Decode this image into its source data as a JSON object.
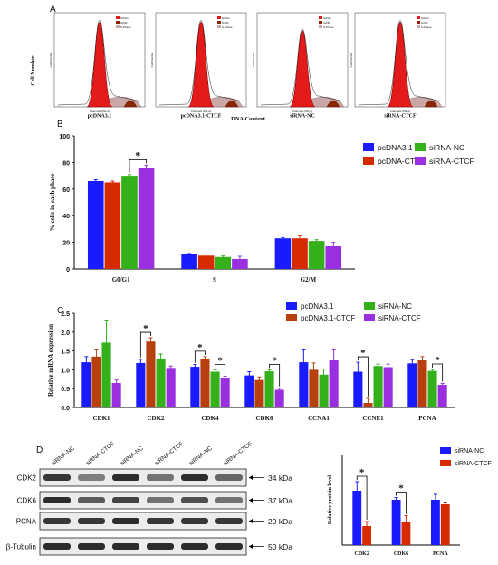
{
  "panel_labels": {
    "a": "A",
    "b": "B",
    "c": "C",
    "d": "D"
  },
  "panel_a": {
    "xlabel": "DNA Content",
    "ylabel": "Cell Number",
    "axis_caption": "Channels (PE-A)",
    "legend_items": [
      "G0/G1",
      "G2/M",
      "S-Phase"
    ],
    "samples": [
      "pcDNA3.1",
      "pcDNA3.1-CTCF",
      "siRNA-NC",
      "siRNA-CTCF"
    ]
  },
  "chart_data": [
    {
      "id": "b",
      "type": "bar",
      "categories": [
        "G0/G1",
        "S",
        "G2/M"
      ],
      "ylabel": "% cells in each phase",
      "ylim": [
        0,
        100
      ],
      "yticks": [
        0,
        20,
        40,
        60,
        80,
        100
      ],
      "legend_placement": "top-right",
      "series": [
        {
          "name": "pcDNA3.1",
          "color": "#1a1aff",
          "values": [
            66,
            11,
            23
          ],
          "errors": [
            1,
            0.6,
            0.6
          ]
        },
        {
          "name": "pcDNA-CTCF",
          "color": "#d62a00",
          "values": [
            65,
            10,
            23
          ],
          "errors": [
            1,
            1.2,
            2
          ]
        },
        {
          "name": "siRNA-NC",
          "color": "#33b01a",
          "values": [
            70,
            9,
            21
          ],
          "errors": [
            0.8,
            0.8,
            1
          ]
        },
        {
          "name": "siRNA-CTCF",
          "color": "#9a2fe0",
          "values": [
            76,
            7.5,
            17
          ],
          "errors": [
            2,
            2,
            3
          ]
        }
      ],
      "significance": [
        {
          "category": "G0/G1",
          "between": [
            "siRNA-NC",
            "siRNA-CTCF"
          ],
          "label": "*"
        }
      ]
    },
    {
      "id": "c",
      "type": "bar",
      "categories": [
        "CDK1",
        "CDK2",
        "CDK4",
        "CDK6",
        "CCNA1",
        "CCNE1",
        "PCNA"
      ],
      "ylabel": "Relative mRNA expression",
      "ylim": [
        0,
        2.5
      ],
      "yticks": [
        0.0,
        0.5,
        1.0,
        1.5,
        2.0,
        2.5
      ],
      "legend_placement": "top-right",
      "series": [
        {
          "name": "pcDNA3.1",
          "color": "#1a1aff",
          "values": [
            1.2,
            1.18,
            1.08,
            0.85,
            1.2,
            0.95,
            1.17
          ],
          "errors": [
            0.15,
            0.1,
            0.06,
            0.1,
            0.35,
            0.25,
            0.1
          ]
        },
        {
          "name": "pcDNA3.1-CTCF",
          "color": "#b8400f",
          "values": [
            1.35,
            1.75,
            1.3,
            0.73,
            1.0,
            0.12,
            1.25
          ],
          "errors": [
            0.2,
            0.1,
            0.05,
            0.08,
            0.18,
            0.12,
            0.1
          ]
        },
        {
          "name": "siRNA-NC",
          "color": "#33b01a",
          "values": [
            1.72,
            1.3,
            0.95,
            0.96,
            0.87,
            1.1,
            0.97
          ],
          "errors": [
            0.6,
            0.12,
            0.05,
            0.04,
            0.15,
            0.05,
            0.04
          ]
        },
        {
          "name": "siRNA-CTCF",
          "color": "#9a2fe0",
          "values": [
            0.65,
            1.05,
            0.78,
            0.47,
            1.25,
            1.07,
            0.6
          ],
          "errors": [
            0.08,
            0.05,
            0.05,
            0.04,
            0.3,
            0.08,
            0.04
          ]
        }
      ],
      "significance": [
        {
          "category": "CDK2",
          "between": [
            "pcDNA3.1",
            "pcDNA3.1-CTCF"
          ],
          "label": "*"
        },
        {
          "category": "CDK4",
          "between": [
            "pcDNA3.1",
            "pcDNA3.1-CTCF"
          ],
          "label": "*"
        },
        {
          "category": "CDK4",
          "between": [
            "siRNA-NC",
            "siRNA-CTCF"
          ],
          "label": "*"
        },
        {
          "category": "CDK6",
          "between": [
            "siRNA-NC",
            "siRNA-CTCF"
          ],
          "label": "*"
        },
        {
          "category": "CCNE1",
          "between": [
            "pcDNA3.1",
            "pcDNA3.1-CTCF"
          ],
          "label": "*"
        },
        {
          "category": "PCNA",
          "between": [
            "siRNA-NC",
            "siRNA-CTCF"
          ],
          "label": "*"
        }
      ]
    },
    {
      "id": "d",
      "type": "bar",
      "categories": [
        "CDK2",
        "CDK6",
        "PCNA"
      ],
      "ylabel": "Relative protein level",
      "ylim": [
        0,
        2.0
      ],
      "yticks": [],
      "legend_placement": "top-right",
      "series": [
        {
          "name": "siRNA-NC",
          "color": "#1a1aff",
          "values": [
            1.2,
            1.0,
            1.0
          ],
          "errors": [
            0.2,
            0.05,
            0.12
          ]
        },
        {
          "name": "siRNA-CTCF",
          "color": "#d62a00",
          "values": [
            0.42,
            0.5,
            0.9
          ],
          "errors": [
            0.1,
            0.15,
            0.05
          ]
        }
      ],
      "significance": [
        {
          "category": "CDK2",
          "between": [
            "siRNA-NC",
            "siRNA-CTCF"
          ],
          "label": "*"
        },
        {
          "category": "CDK6",
          "between": [
            "siRNA-NC",
            "siRNA-CTCF"
          ],
          "label": "*"
        }
      ]
    }
  ],
  "western_blot": {
    "lanes": [
      "siRNA-NC",
      "siRNA-CTCF",
      "siRNA-NC",
      "siRNA-CTCF",
      "siRNA-NC",
      "siRNA-CTCF"
    ],
    "rows": [
      {
        "protein": "CDK2",
        "size": "34 kDa",
        "intensity": [
          0.85,
          0.55,
          0.9,
          0.6,
          0.9,
          0.65
        ]
      },
      {
        "protein": "CDK6",
        "size": "37 kDa",
        "intensity": [
          0.9,
          0.7,
          0.8,
          0.6,
          0.75,
          0.6
        ]
      },
      {
        "protein": "PCNA",
        "size": "29 kDa",
        "intensity": [
          0.85,
          0.85,
          0.9,
          0.85,
          0.85,
          0.85
        ]
      },
      {
        "protein": "β-Tubulin",
        "size": "50 kDa",
        "intensity": [
          0.9,
          0.9,
          0.9,
          0.9,
          0.9,
          0.9
        ]
      }
    ]
  }
}
